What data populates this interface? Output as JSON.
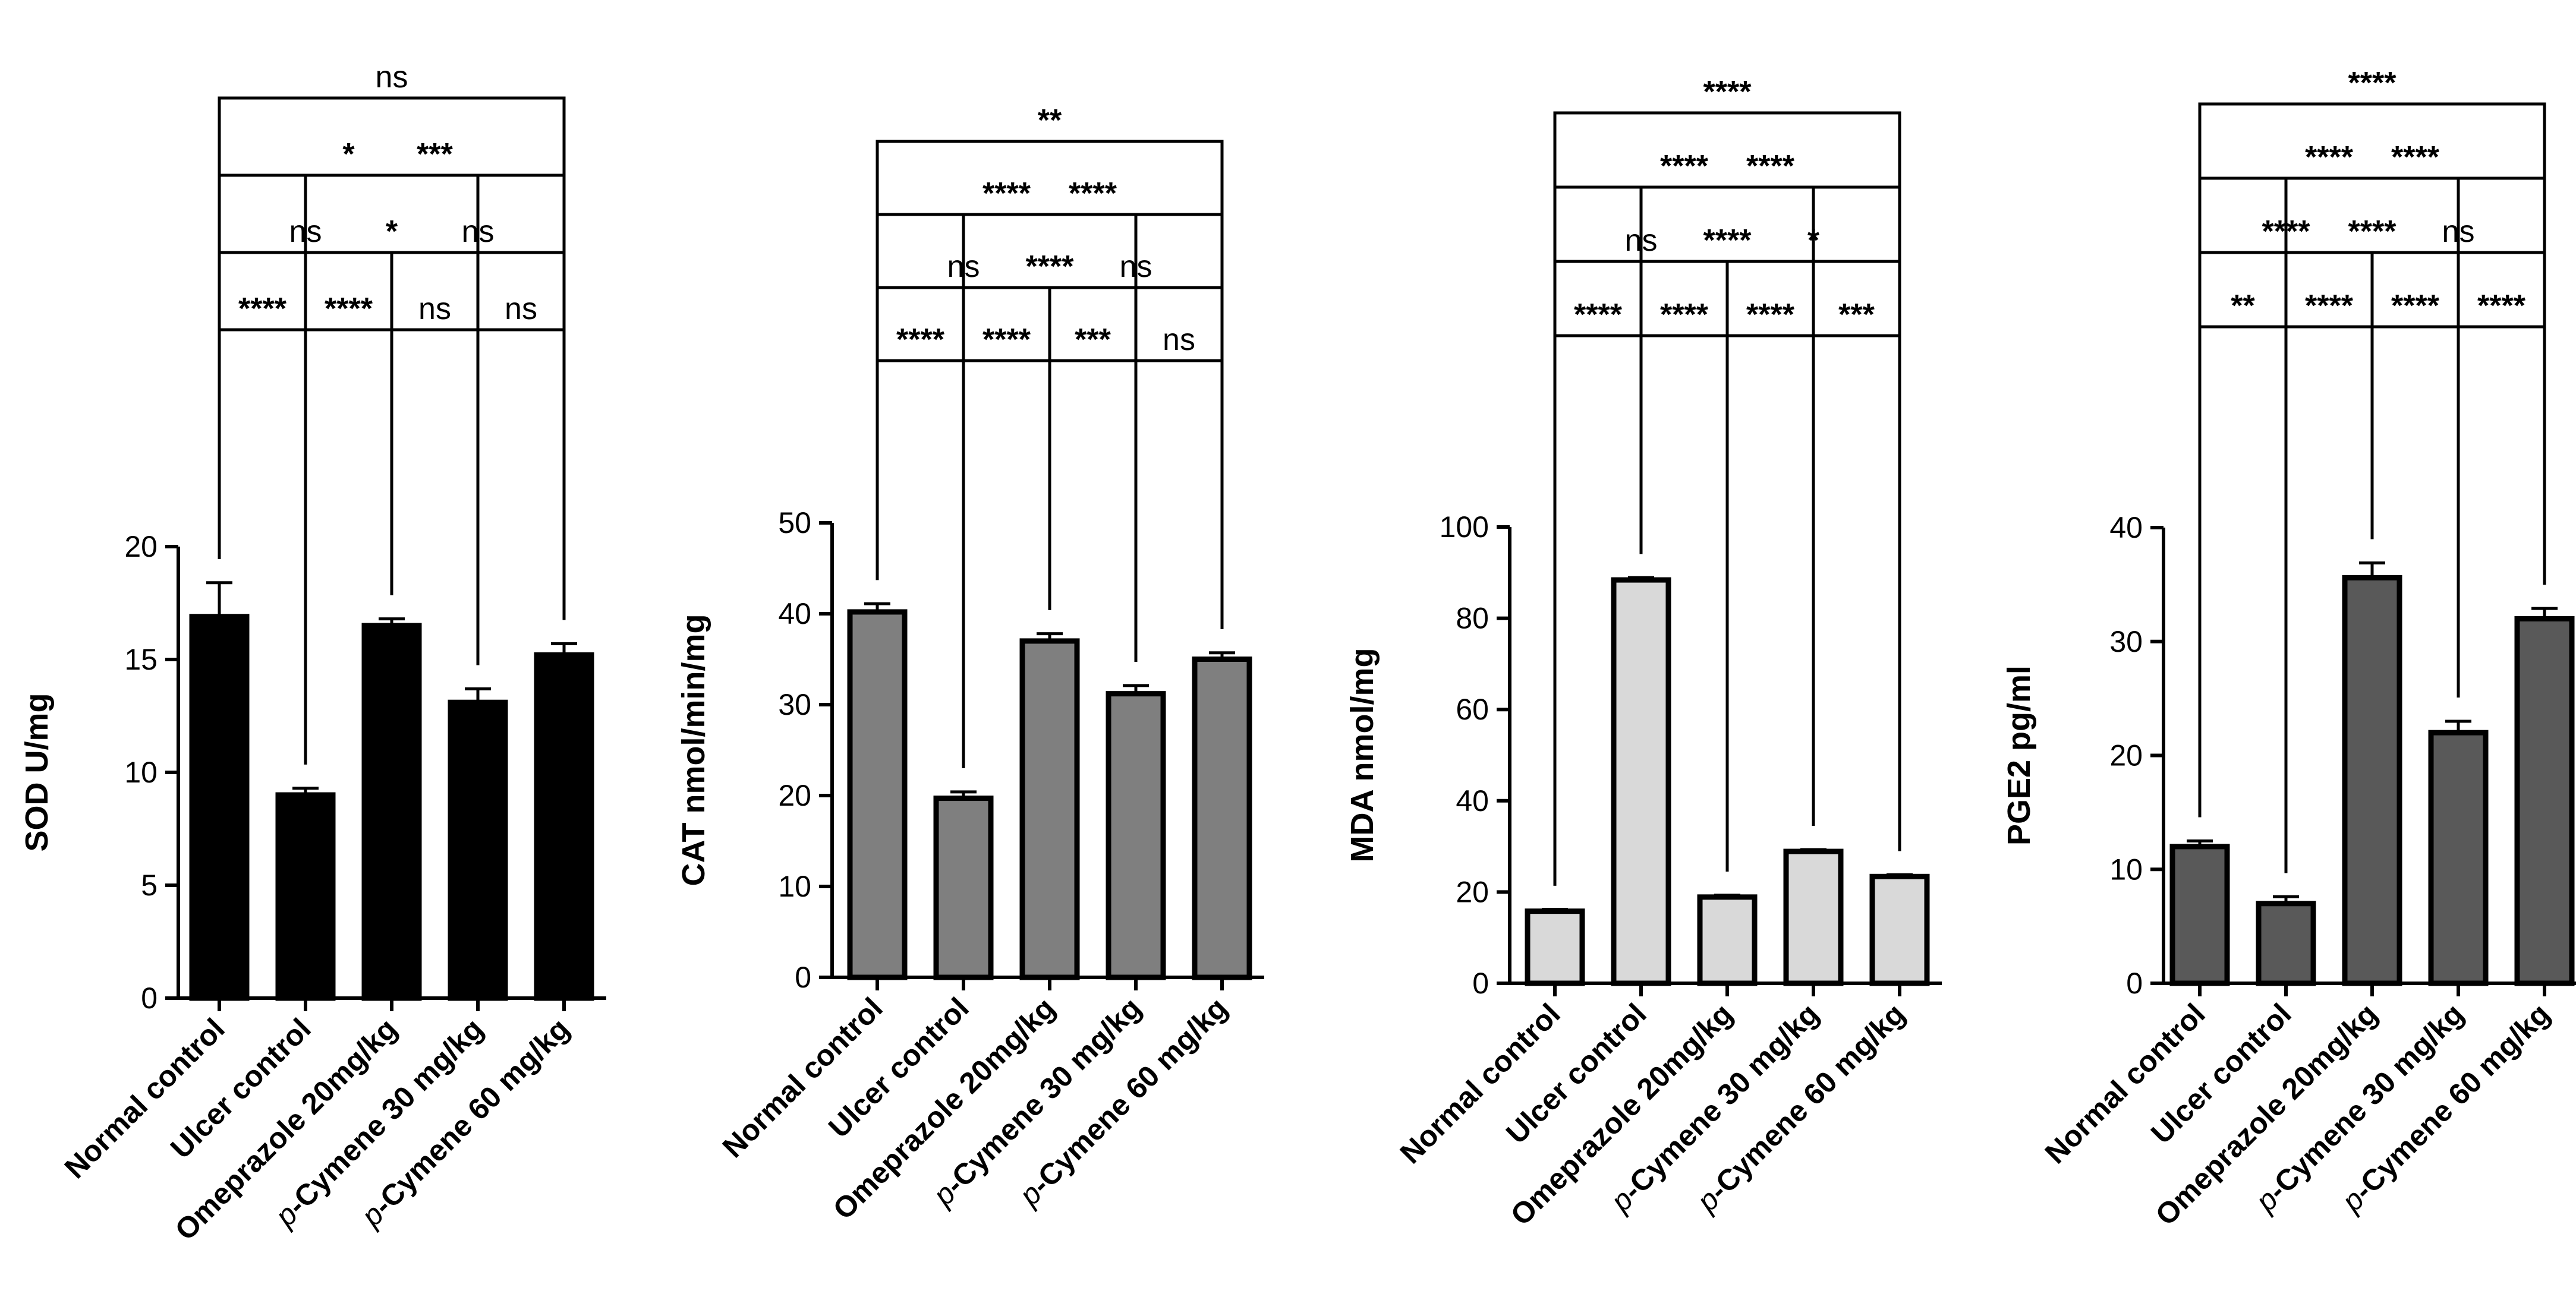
{
  "chart_data": [
    {
      "type": "bar",
      "panel": "SOD",
      "ylabel": "SOD U/mg",
      "ylim": [
        0,
        20
      ],
      "yticks": [
        0,
        5,
        10,
        15,
        20
      ],
      "categories": [
        "Normal control",
        "Ulcer control",
        "Omeprazole 20mg/kg",
        "p-Cymene 30 mg/kg",
        "p-Cymene 60 mg/kg"
      ],
      "values": [
        16.9,
        9.0,
        16.5,
        13.1,
        15.2
      ],
      "errors": [
        1.5,
        0.3,
        0.3,
        0.6,
        0.5
      ],
      "bar_color": "#000000",
      "comparisons": [
        {
          "a": 0,
          "b": 1,
          "label": "****"
        },
        {
          "a": 2,
          "b": 3,
          "label": "ns"
        },
        {
          "a": 3,
          "b": 4,
          "label": "ns"
        },
        {
          "a": 1,
          "b": 2,
          "label": "****"
        },
        {
          "a": 2,
          "b": 4,
          "label": "ns"
        },
        {
          "a": 0,
          "b": 2,
          "label": "ns"
        },
        {
          "a": 1,
          "b": 3,
          "label": "*"
        },
        {
          "a": 0,
          "b": 3,
          "label": "*"
        },
        {
          "a": 1,
          "b": 4,
          "label": "***"
        },
        {
          "a": 0,
          "b": 4,
          "label": "ns"
        }
      ]
    },
    {
      "type": "bar",
      "panel": "CAT",
      "ylabel": "CAT nmol/min/mg",
      "ylim": [
        0,
        50
      ],
      "yticks": [
        0,
        10,
        20,
        30,
        40,
        50
      ],
      "categories": [
        "Normal control",
        "Ulcer control",
        "Omeprazole 20mg/kg",
        "p-Cymene 30 mg/kg",
        "p-Cymene 60 mg/kg"
      ],
      "values": [
        40.2,
        19.7,
        37.0,
        31.2,
        35.0
      ],
      "errors": [
        0.9,
        0.7,
        0.8,
        0.9,
        0.7
      ],
      "bar_color": "#7f7f7f",
      "comparisons": [
        {
          "a": 0,
          "b": 1,
          "label": "****"
        },
        {
          "a": 2,
          "b": 3,
          "label": "***"
        },
        {
          "a": 3,
          "b": 4,
          "label": "ns"
        },
        {
          "a": 1,
          "b": 2,
          "label": "****"
        },
        {
          "a": 2,
          "b": 4,
          "label": "ns"
        },
        {
          "a": 0,
          "b": 2,
          "label": "ns"
        },
        {
          "a": 1,
          "b": 3,
          "label": "****"
        },
        {
          "a": 0,
          "b": 3,
          "label": "****"
        },
        {
          "a": 1,
          "b": 4,
          "label": "****"
        },
        {
          "a": 0,
          "b": 4,
          "label": "**"
        }
      ]
    },
    {
      "type": "bar",
      "panel": "MDA",
      "ylabel": "MDA nmol/mg",
      "ylim": [
        0,
        100
      ],
      "yticks": [
        0,
        20,
        40,
        60,
        80,
        100
      ],
      "categories": [
        "Normal control",
        "Ulcer control",
        "Omeprazole 20mg/kg",
        "p-Cymene 30 mg/kg",
        "p-Cymene 60 mg/kg"
      ],
      "values": [
        15.8,
        88.4,
        18.9,
        28.9,
        23.4
      ],
      "errors": [
        0.4,
        0.5,
        0.4,
        0.4,
        0.4
      ],
      "bar_color": "#d9d9d9",
      "comparisons": [
        {
          "a": 0,
          "b": 1,
          "label": "****"
        },
        {
          "a": 2,
          "b": 3,
          "label": "****"
        },
        {
          "a": 1,
          "b": 2,
          "label": "****"
        },
        {
          "a": 3,
          "b": 4,
          "label": "***"
        },
        {
          "a": 0,
          "b": 2,
          "label": "ns"
        },
        {
          "a": 2,
          "b": 4,
          "label": "*"
        },
        {
          "a": 1,
          "b": 3,
          "label": "****"
        },
        {
          "a": 0,
          "b": 3,
          "label": "****"
        },
        {
          "a": 1,
          "b": 4,
          "label": "****"
        },
        {
          "a": 0,
          "b": 4,
          "label": "****"
        }
      ]
    },
    {
      "type": "bar",
      "panel": "PGE2",
      "ylabel": "PGE2 pg/ml",
      "ylim": [
        0,
        40
      ],
      "yticks": [
        0,
        10,
        20,
        30,
        40
      ],
      "categories": [
        "Normal control",
        "Ulcer control",
        "Omeprazole 20mg/kg",
        "p-Cymene 30 mg/kg",
        "p-Cymene 60 mg/kg"
      ],
      "values": [
        12.0,
        7.0,
        35.6,
        22.0,
        32.0
      ],
      "errors": [
        0.5,
        0.6,
        1.3,
        1.0,
        0.9
      ],
      "bar_color": "#595959",
      "comparisons": [
        {
          "a": 0,
          "b": 1,
          "label": "**"
        },
        {
          "a": 2,
          "b": 3,
          "label": "****"
        },
        {
          "a": 1,
          "b": 2,
          "label": "****"
        },
        {
          "a": 3,
          "b": 4,
          "label": "****"
        },
        {
          "a": 0,
          "b": 2,
          "label": "****"
        },
        {
          "a": 2,
          "b": 4,
          "label": "ns"
        },
        {
          "a": 1,
          "b": 3,
          "label": "****"
        },
        {
          "a": 0,
          "b": 3,
          "label": "****"
        },
        {
          "a": 1,
          "b": 4,
          "label": "****"
        },
        {
          "a": 0,
          "b": 4,
          "label": "****"
        }
      ]
    }
  ]
}
